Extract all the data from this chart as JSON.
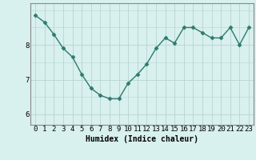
{
  "x": [
    0,
    1,
    2,
    3,
    4,
    5,
    6,
    7,
    8,
    9,
    10,
    11,
    12,
    13,
    14,
    15,
    16,
    17,
    18,
    19,
    20,
    21,
    22,
    23
  ],
  "y": [
    8.85,
    8.65,
    8.3,
    7.9,
    7.65,
    7.15,
    6.75,
    6.55,
    6.45,
    6.45,
    6.9,
    7.15,
    7.45,
    7.9,
    8.2,
    8.05,
    8.5,
    8.5,
    8.35,
    8.2,
    8.2,
    8.5,
    8.0,
    8.5
  ],
  "line_color": "#2d7a6e",
  "marker": "D",
  "marker_size": 2.5,
  "line_width": 1.0,
  "bg_color": "#d8f0ee",
  "grid_color_major": "#b8d4d0",
  "grid_color_minor": "#cce4e0",
  "xlabel": "Humidex (Indice chaleur)",
  "xlabel_fontsize": 7,
  "ylabel_ticks": [
    6,
    7,
    8
  ],
  "ylim": [
    5.7,
    9.2
  ],
  "xlim": [
    -0.5,
    23.5
  ],
  "tick_fontsize": 6.5,
  "spine_color": "#888888"
}
